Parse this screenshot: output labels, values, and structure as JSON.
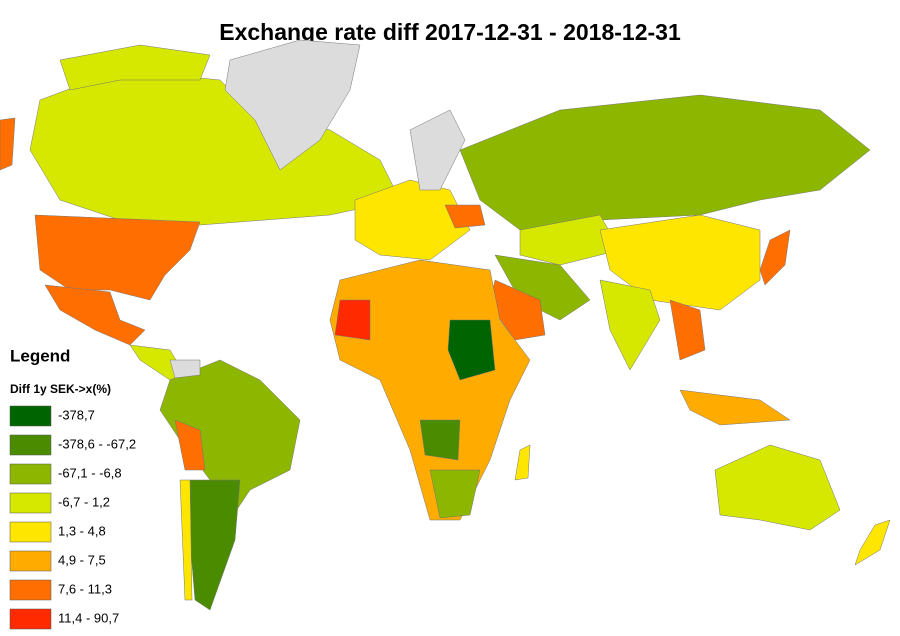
{
  "map": {
    "title": "Exchange rate diff 2017-12-31 - 2018-12-31",
    "legend": {
      "title": "Legend",
      "subtitle": "Diff 1y SEK->x(%)",
      "items": [
        {
          "label": "-378,7",
          "color": "#006400"
        },
        {
          "label": "-378,6 - -67,2",
          "color": "#4b8b00"
        },
        {
          "label": "-67,1 - -6,8",
          "color": "#8db600"
        },
        {
          "label": "-6,7 - 1,2",
          "color": "#d6e800"
        },
        {
          "label": "1,3 - 4,8",
          "color": "#ffe600"
        },
        {
          "label": "4,9 - 7,5",
          "color": "#ffab00"
        },
        {
          "label": "7,6 - 11,3",
          "color": "#ff6e00"
        },
        {
          "label": "11,4 - 90,7",
          "color": "#ff2a00"
        }
      ]
    }
  }
}
